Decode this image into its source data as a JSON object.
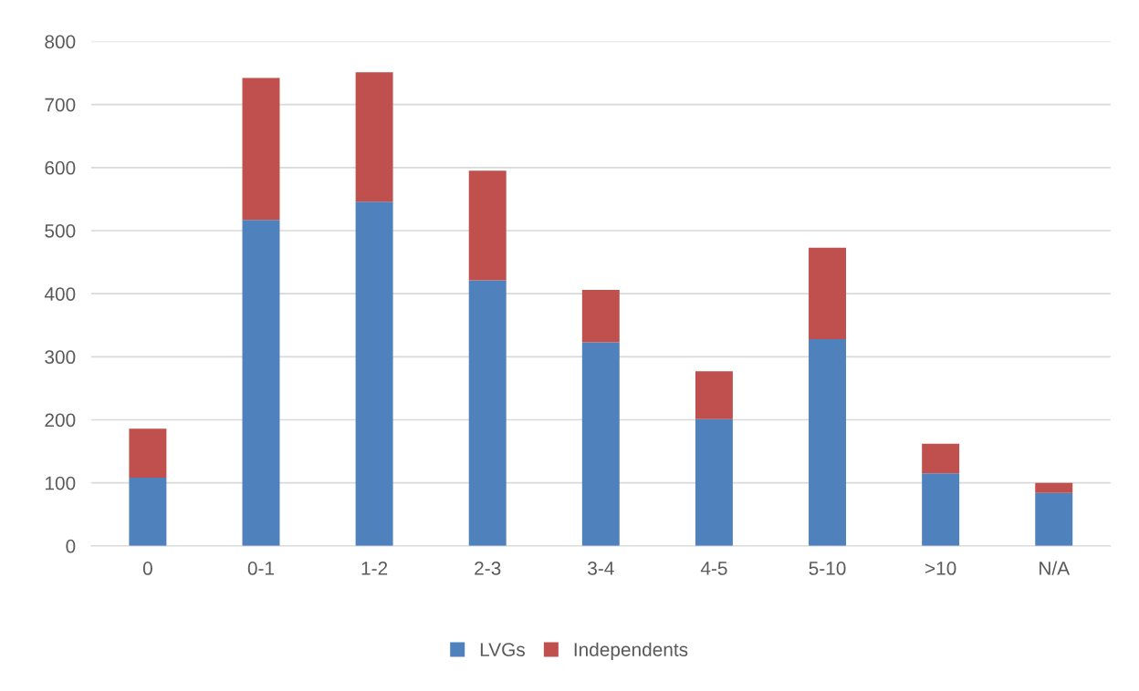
{
  "chart_data": {
    "type": "bar",
    "stacked": true,
    "categories": [
      "0",
      "0-1",
      "1-2",
      "2-3",
      "3-4",
      "4-5",
      "5-10",
      ">10",
      "N/A"
    ],
    "series": [
      {
        "name": "LVGs",
        "color": "#4f81bd",
        "values": [
          108,
          517,
          546,
          421,
          323,
          201,
          328,
          115,
          84
        ]
      },
      {
        "name": "Independents",
        "color": "#c0504d",
        "values": [
          78,
          225,
          205,
          174,
          83,
          76,
          145,
          47,
          16
        ]
      }
    ],
    "ylim": [
      0,
      800
    ],
    "yticks": [
      0,
      100,
      200,
      300,
      400,
      500,
      600,
      700,
      800
    ],
    "grid": "y",
    "legend": "bottom"
  }
}
